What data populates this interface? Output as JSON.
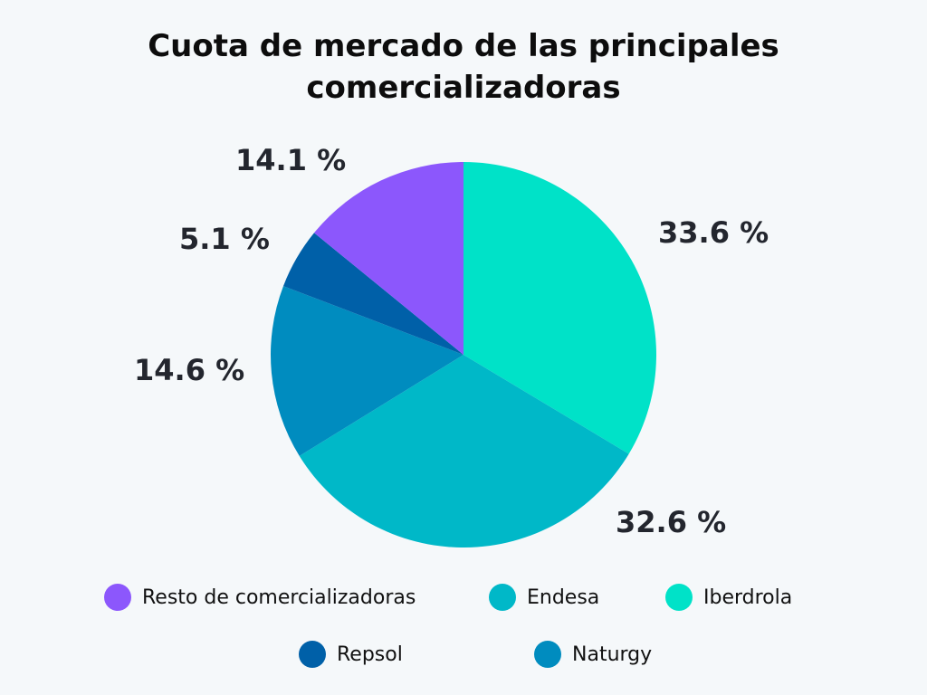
{
  "title": "Cuota de mercado de las principales comercializadoras",
  "chart_data": {
    "type": "pie",
    "title": "Cuota de mercado de las principales comercializadoras",
    "categories": [
      "Iberdrola",
      "Endesa",
      "Naturgy",
      "Repsol",
      "Resto de comercializadoras"
    ],
    "values": [
      33.6,
      32.6,
      14.6,
      5.1,
      14.1
    ],
    "colors": [
      "#00e2c8",
      "#00b8c8",
      "#008cbf",
      "#0060a8",
      "#8c57fc"
    ],
    "labels": [
      "33.6 %",
      "32.6 %",
      "14.6 %",
      "5.1 %",
      "14.1 %"
    ],
    "legend_position": "bottom"
  },
  "legend": [
    {
      "label": "Resto de comercializadoras",
      "color": "#8c57fc"
    },
    {
      "label": "Endesa",
      "color": "#00b8c8"
    },
    {
      "label": "Iberdrola",
      "color": "#00e2c8"
    },
    {
      "label": "Repsol",
      "color": "#0060a8"
    },
    {
      "label": "Naturgy",
      "color": "#008cbf"
    }
  ]
}
